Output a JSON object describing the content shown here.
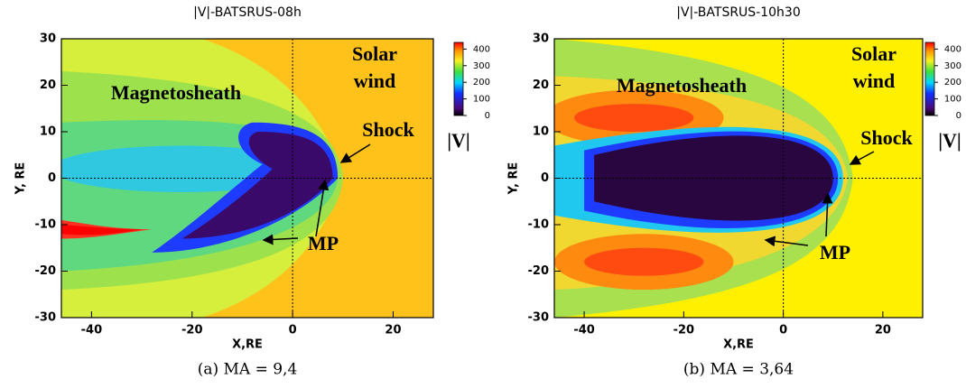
{
  "chart_data": [
    {
      "type": "contour",
      "title": "|V|-BATSRUS-08h",
      "xlabel": "X,RE",
      "ylabel": "Y, RE",
      "xlim": [
        -46,
        28
      ],
      "ylim": [
        -30,
        30
      ],
      "xticks": [
        -40,
        -20,
        0,
        20
      ],
      "yticks": [
        -30,
        -20,
        -10,
        0,
        10,
        20,
        30
      ],
      "xlines": [
        0
      ],
      "ylines": [
        0
      ],
      "clim": [
        0,
        440
      ],
      "cticks": [
        0,
        100,
        200,
        300,
        400
      ],
      "colorbar_label": "|V|",
      "annotations": [
        "Magnetosheath",
        "Solar",
        "wind",
        "Shock",
        "MP"
      ],
      "caption": "(a) MA = 9,4"
    },
    {
      "type": "contour",
      "title": "|V|-BATSRUS-10h30",
      "xlabel": "X,RE",
      "ylabel": "Y, RE",
      "xlim": [
        -46,
        28
      ],
      "ylim": [
        -30,
        30
      ],
      "xticks": [
        -40,
        -20,
        0,
        20
      ],
      "yticks": [
        -30,
        -20,
        -10,
        0,
        10,
        20,
        30
      ],
      "xlines": [
        0
      ],
      "ylines": [
        0
      ],
      "clim": [
        0,
        440
      ],
      "cticks": [
        0,
        100,
        200,
        300,
        400
      ],
      "colorbar_label": "|V|",
      "annotations": [
        "Magnetosheath",
        "Solar",
        "wind",
        "Shock",
        "MP"
      ],
      "caption": "(b) MA = 3,64"
    }
  ]
}
